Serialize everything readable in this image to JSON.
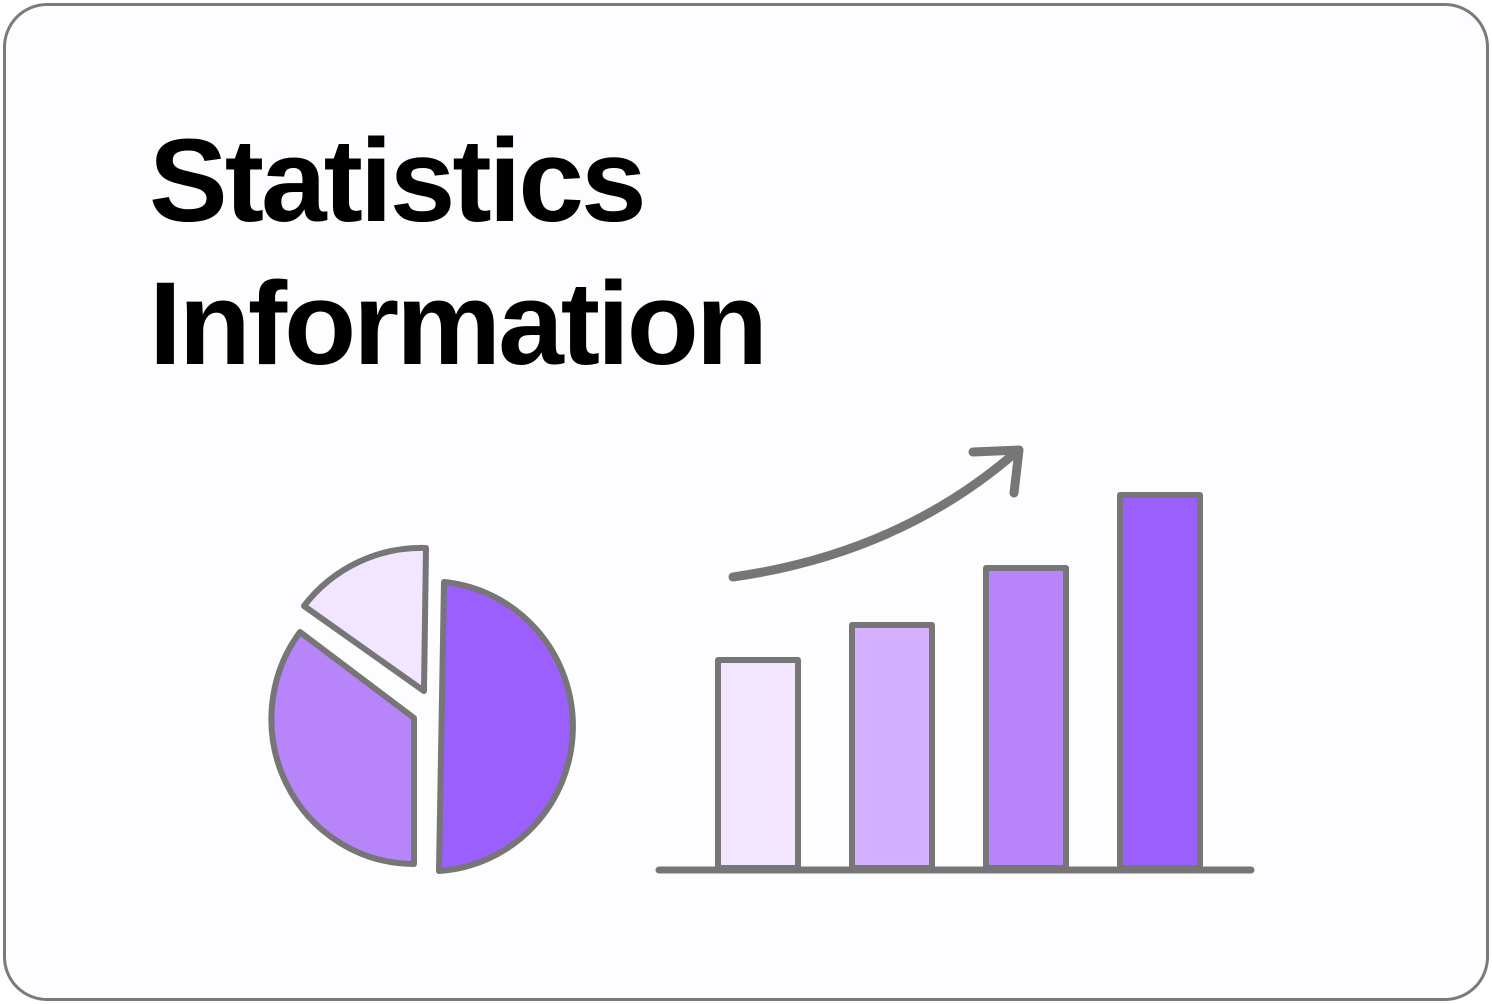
{
  "title": {
    "line1": "Statistics",
    "line2": "Information"
  },
  "icons": [
    "pie-chart-icon",
    "bar-chart-icon",
    "trend-up-arrow-icon"
  ],
  "colors": {
    "stroke": "#767676",
    "lightest_purple": "#f1e5ff",
    "light_purple": "#d5b0ff",
    "medium_purple": "#b784f9",
    "strong_purple": "#9b5ffd",
    "text": "#000000"
  },
  "pie_levels": [
    0.5,
    0.35,
    0.15
  ],
  "bar_levels": [
    0.55,
    0.64,
    0.8,
    1.0
  ]
}
